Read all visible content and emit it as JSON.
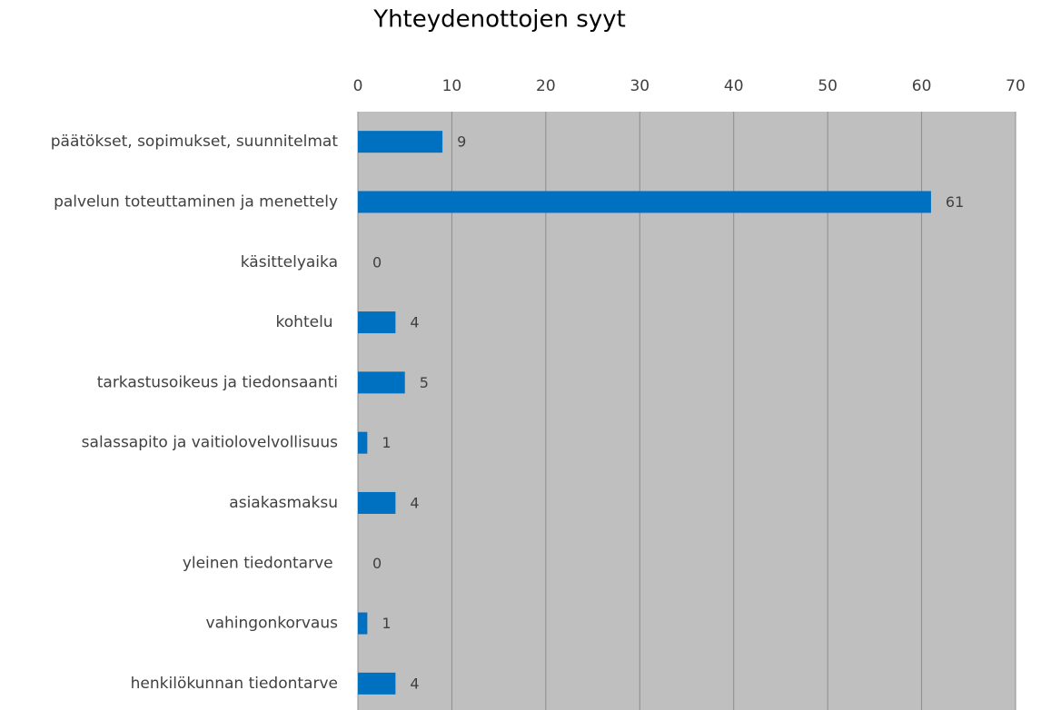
{
  "chart_data": {
    "type": "bar",
    "orientation": "horizontal",
    "title": "Yhteydenottojen syyt",
    "categories": [
      "päätökset, sopimukset, suunnitelmat",
      "palvelun toteuttaminen ja menettely",
      "käsittelyaika",
      "kohtelu ",
      "tarkastusoikeus ja tiedonsaanti",
      "salassapito ja vaitiolovelvollisuus",
      "asiakasmaksu",
      "yleinen tiedontarve ",
      "vahingonkorvaus",
      "henkilökunnan tiedontarve"
    ],
    "values": [
      9,
      61,
      0,
      4,
      5,
      1,
      4,
      0,
      1,
      4
    ],
    "color": "#0070c0",
    "xlim": [
      0,
      70
    ],
    "xticks": [
      0,
      10,
      20,
      30,
      40,
      50,
      60,
      70
    ],
    "grid": true
  }
}
